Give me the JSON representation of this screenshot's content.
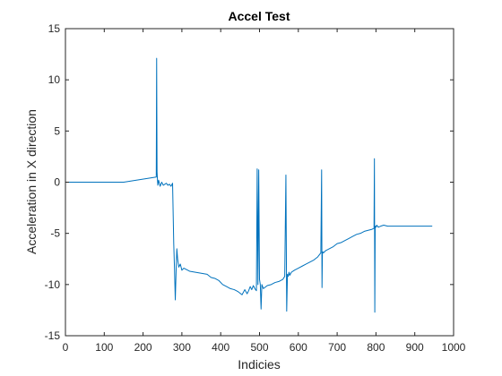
{
  "chart_data": {
    "type": "line",
    "title": "Accel Test",
    "xlabel": "Indicies",
    "ylabel": "Acceleration in X direction",
    "xlim": [
      0,
      1000
    ],
    "ylim": [
      -15,
      15
    ],
    "xticks": [
      0,
      100,
      200,
      300,
      400,
      500,
      600,
      700,
      800,
      900,
      1000
    ],
    "yticks": [
      -15,
      -10,
      -5,
      0,
      5,
      10,
      15
    ],
    "grid": false,
    "line_color": "#0072BD",
    "series": [
      {
        "x": [
          0,
          150,
          234,
          235,
          236,
          237,
          238,
          240,
          244,
          248,
          252,
          256,
          260,
          264,
          268,
          272,
          276,
          279,
          281,
          283,
          285,
          287,
          289,
          292,
          296,
          300,
          305,
          310,
          320,
          335,
          350,
          365,
          375,
          385,
          395,
          405,
          415,
          425,
          435,
          445,
          455,
          462,
          468,
          472,
          476,
          480,
          484,
          488,
          492,
          494,
          496,
          498,
          500,
          502,
          504,
          506,
          510,
          520,
          530,
          540,
          550,
          560,
          565,
          568,
          570,
          572,
          574,
          576,
          578,
          582,
          590,
          600,
          610,
          620,
          630,
          640,
          650,
          658,
          660,
          661,
          662,
          663,
          665,
          670,
          680,
          690,
          700,
          710,
          720,
          730,
          740,
          750,
          760,
          770,
          780,
          790,
          795,
          796,
          797,
          798,
          799,
          800,
          802,
          806,
          812,
          820,
          830,
          840,
          860,
          880,
          900,
          920,
          945
        ],
        "y": [
          0,
          0,
          0.5,
          12.1,
          1.0,
          0.3,
          -0.3,
          0.2,
          -0.4,
          0.0,
          -0.3,
          -0.2,
          -0.1,
          -0.3,
          -0.2,
          -0.4,
          -0.1,
          -6.0,
          -8.5,
          -11.5,
          -8.8,
          -6.5,
          -7.5,
          -8.3,
          -8.0,
          -8.6,
          -8.4,
          -8.5,
          -8.7,
          -8.8,
          -8.9,
          -9.0,
          -9.3,
          -9.4,
          -9.6,
          -10.0,
          -10.2,
          -10.4,
          -10.5,
          -10.7,
          -11.0,
          -10.5,
          -10.9,
          -10.6,
          -10.2,
          -10.5,
          -10.1,
          -10.4,
          -10.6,
          1.3,
          -10.0,
          1.2,
          -9.5,
          -10.0,
          -12.4,
          -10.0,
          -10.4,
          -10.1,
          -10.0,
          -9.8,
          -9.7,
          -9.5,
          -9.2,
          0.7,
          -12.6,
          -9.0,
          -9.2,
          -8.8,
          -9.1,
          -8.8,
          -8.6,
          -8.4,
          -8.2,
          -8.0,
          -7.8,
          -7.6,
          -7.3,
          -6.9,
          1.2,
          -10.3,
          -7.0,
          -6.8,
          -6.9,
          -6.7,
          -6.5,
          -6.3,
          -6.0,
          -5.9,
          -5.7,
          -5.5,
          -5.3,
          -5.1,
          -5.0,
          -4.8,
          -4.7,
          -4.6,
          -4.5,
          2.3,
          -12.7,
          -4.5,
          -4.3,
          -4.4,
          -4.2,
          -4.4,
          -4.3,
          -4.2,
          -4.3,
          -4.3,
          -4.3,
          -4.3,
          -4.3,
          -4.3,
          -4.3
        ]
      }
    ]
  }
}
